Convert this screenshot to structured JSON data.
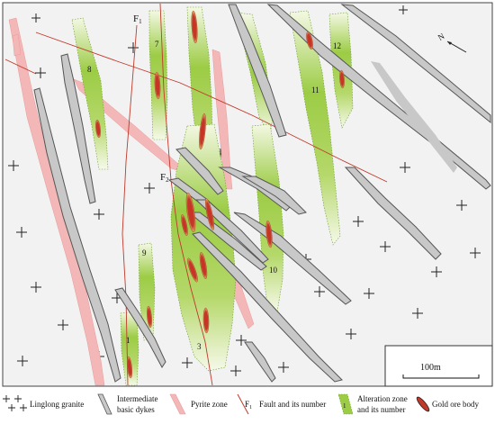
{
  "map": {
    "fault_labels": {
      "f1": "F",
      "f1_sub": "1",
      "f2": "F",
      "f2_sub": "2"
    },
    "zone_numbers": {
      "z1": "1",
      "z3": "3",
      "z7": "7",
      "z8": "8",
      "z9": "9",
      "z10": "10",
      "z11": "11",
      "z12": "12"
    },
    "scale_bar_label": "100m",
    "north_arrow_label": "N"
  },
  "legend": {
    "granite": "Linglong granite",
    "dykes_line1": "Intermediate",
    "dykes_line2": "basic dykes",
    "pyrite": "Pyrite zone",
    "fault": "Fault and its number",
    "fault_symbol": "F",
    "fault_symbol_sub": "1",
    "alteration_line1": "Alteration zone",
    "alteration_line2": "and its number",
    "alteration_symbol": "1",
    "gold": "Gold ore body"
  },
  "colors": {
    "granite_bg": "#f2f2f2",
    "dyke_fill": "#c8c8c8",
    "dyke_stroke": "#555555",
    "pyrite": "#f4b7b7",
    "fault": "#c0392b",
    "alteration_green": "#8cc63f",
    "gold_ore": "#c0392b"
  }
}
